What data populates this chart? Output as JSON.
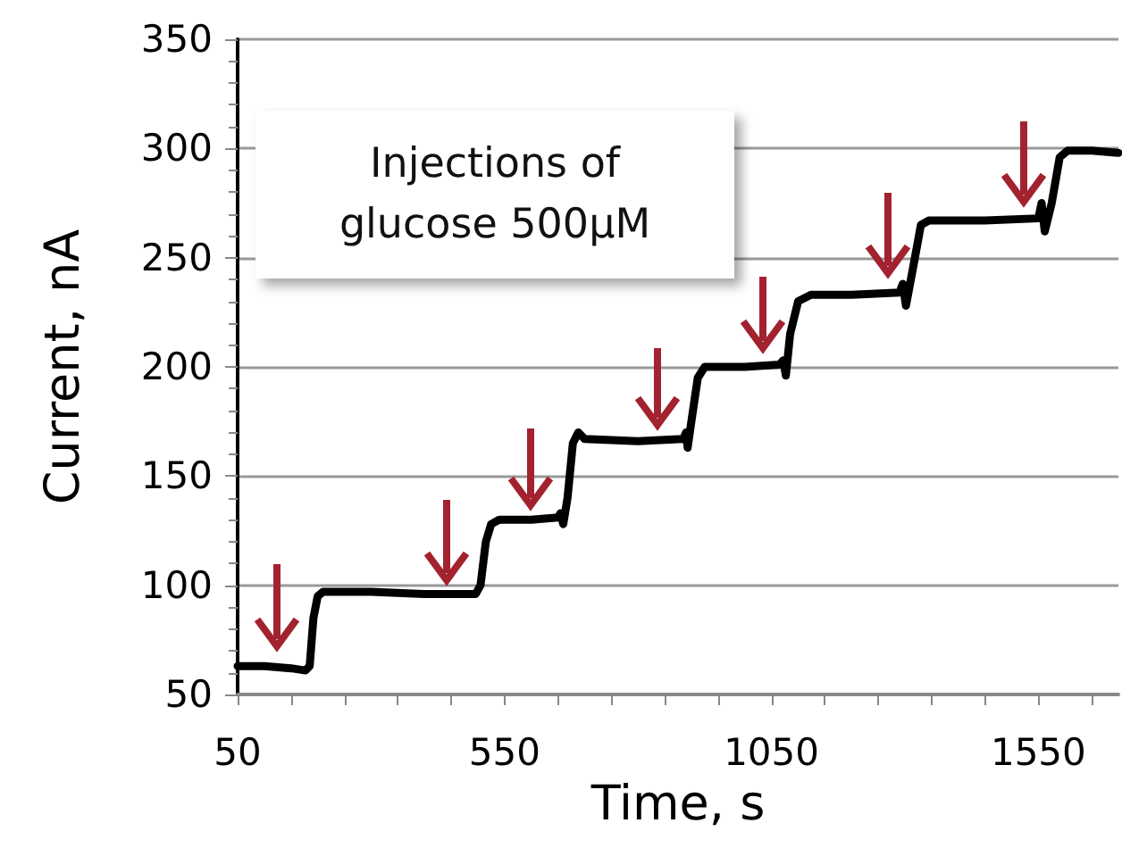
{
  "chart_data": {
    "type": "line",
    "xlabel": "Time, s",
    "ylabel": "Current, nA",
    "annotations": [
      "Injections of glucose 500µM"
    ],
    "series": [
      {
        "color": "#000000",
        "x": [
          50,
          100,
          150,
          177,
          185,
          192,
          200,
          210,
          300,
          400,
          496,
          505,
          515,
          525,
          540,
          600,
          650,
          655,
          660,
          668,
          678,
          688,
          700,
          800,
          885,
          890,
          893,
          900,
          912,
          925,
          1000,
          1065,
          1072,
          1077,
          1085,
          1100,
          1124,
          1200,
          1290,
          1296,
          1302,
          1315,
          1330,
          1345,
          1450,
          1550,
          1556,
          1562,
          1575,
          1590,
          1605,
          1650,
          1700
        ],
        "values": [
          63,
          63,
          62,
          61,
          63,
          85,
          95,
          97,
          97,
          96,
          96,
          100,
          120,
          128,
          130,
          130,
          131,
          133,
          128,
          140,
          165,
          170,
          167,
          166,
          167,
          170,
          163,
          175,
          195,
          200,
          200,
          201,
          203,
          196,
          215,
          230,
          233,
          233,
          234,
          238,
          228,
          245,
          265,
          267,
          267,
          268,
          275,
          262,
          275,
          296,
          299,
          299,
          298
        ]
      }
    ],
    "xlim": [
      50,
      1700
    ],
    "xticks": [
      50,
      {
        "value": 150,
        "label": null
      },
      {
        "value": 250,
        "label": null
      },
      {
        "value": 350,
        "label": null
      },
      {
        "value": 450,
        "label": null
      },
      550,
      {
        "value": 650,
        "label": null
      },
      {
        "value": 750,
        "label": null
      },
      {
        "value": 850,
        "label": null
      },
      {
        "value": 950,
        "label": null
      },
      1050,
      {
        "value": 1150,
        "label": null
      },
      {
        "value": 1250,
        "label": null
      },
      {
        "value": 1350,
        "label": null
      },
      {
        "value": 1450,
        "label": null
      },
      1550,
      {
        "value": 1650,
        "label": null
      }
    ],
    "ylim": [
      50,
      350
    ],
    "yticks": [
      50,
      100,
      150,
      200,
      250,
      300,
      350
    ],
    "grid": "y",
    "marker": "none",
    "line_style": "solid"
  }
}
